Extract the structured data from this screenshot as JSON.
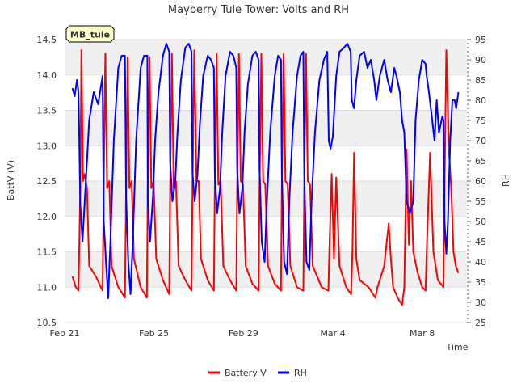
{
  "chart_data": {
    "type": "line",
    "title": "Mayberry Tule Tower: Volts and RH",
    "site_label": "MB_tule",
    "xlabel": "Time",
    "ylabel_left": "BattV (V)",
    "ylabel_right": "RH",
    "x_ticks": [
      "Feb 21",
      "Feb 25",
      "Feb 29",
      "Mar 4",
      "Mar 8"
    ],
    "x_tick_days": [
      0,
      4,
      8,
      12,
      16
    ],
    "xlim_days": [
      0,
      18
    ],
    "ylim_left": [
      10.5,
      14.5
    ],
    "yticks_left": [
      "10.5",
      "11.0",
      "11.5",
      "12.0",
      "12.5",
      "13.0",
      "13.5",
      "14.0",
      "14.5"
    ],
    "ylim_right": [
      25,
      95
    ],
    "yticks_right": [
      "25",
      "30",
      "35",
      "40",
      "45",
      "50",
      "55",
      "60",
      "65",
      "70",
      "75",
      "80",
      "85",
      "90",
      "95"
    ],
    "grid": true,
    "legend_position": "bottom-center",
    "series": [
      {
        "name": "Battery V",
        "axis": "left",
        "color": "#ff0000",
        "points": [
          [
            0.35,
            11.15
          ],
          [
            0.5,
            11.0
          ],
          [
            0.62,
            10.95
          ],
          [
            0.7,
            12.4
          ],
          [
            0.75,
            14.35
          ],
          [
            0.82,
            12.5
          ],
          [
            0.9,
            12.6
          ],
          [
            1.0,
            12.4
          ],
          [
            1.1,
            11.3
          ],
          [
            1.4,
            11.15
          ],
          [
            1.7,
            10.95
          ],
          [
            1.75,
            12.4
          ],
          [
            1.82,
            14.3
          ],
          [
            1.9,
            12.4
          ],
          [
            2.0,
            12.5
          ],
          [
            2.1,
            11.3
          ],
          [
            2.4,
            11.0
          ],
          [
            2.7,
            10.85
          ],
          [
            2.75,
            12.4
          ],
          [
            2.82,
            14.25
          ],
          [
            2.9,
            12.4
          ],
          [
            3.0,
            12.5
          ],
          [
            3.1,
            11.4
          ],
          [
            3.4,
            11.0
          ],
          [
            3.68,
            10.85
          ],
          [
            3.72,
            12.4
          ],
          [
            3.8,
            14.25
          ],
          [
            3.88,
            12.4
          ],
          [
            3.98,
            12.5
          ],
          [
            4.1,
            11.4
          ],
          [
            4.4,
            11.1
          ],
          [
            4.68,
            10.9
          ],
          [
            4.72,
            12.4
          ],
          [
            4.8,
            14.3
          ],
          [
            4.88,
            12.4
          ],
          [
            4.98,
            12.5
          ],
          [
            5.1,
            11.3
          ],
          [
            5.4,
            11.1
          ],
          [
            5.68,
            10.95
          ],
          [
            5.72,
            12.4
          ],
          [
            5.8,
            14.35
          ],
          [
            5.9,
            12.5
          ],
          [
            6.0,
            12.5
          ],
          [
            6.1,
            11.4
          ],
          [
            6.4,
            11.1
          ],
          [
            6.68,
            10.95
          ],
          [
            6.72,
            12.4
          ],
          [
            6.8,
            14.3
          ],
          [
            6.88,
            12.45
          ],
          [
            6.98,
            12.5
          ],
          [
            7.1,
            11.3
          ],
          [
            7.4,
            11.1
          ],
          [
            7.68,
            10.95
          ],
          [
            7.72,
            12.4
          ],
          [
            7.8,
            14.3
          ],
          [
            7.88,
            12.5
          ],
          [
            7.98,
            12.45
          ],
          [
            8.1,
            11.3
          ],
          [
            8.4,
            11.05
          ],
          [
            8.68,
            10.95
          ],
          [
            8.72,
            12.4
          ],
          [
            8.8,
            14.3
          ],
          [
            8.88,
            12.5
          ],
          [
            8.98,
            12.45
          ],
          [
            9.1,
            11.3
          ],
          [
            9.4,
            11.05
          ],
          [
            9.68,
            10.95
          ],
          [
            9.72,
            12.4
          ],
          [
            9.8,
            14.3
          ],
          [
            9.88,
            12.5
          ],
          [
            9.98,
            12.45
          ],
          [
            10.1,
            11.3
          ],
          [
            10.4,
            11.0
          ],
          [
            10.68,
            10.95
          ],
          [
            10.72,
            12.4
          ],
          [
            10.8,
            14.3
          ],
          [
            10.88,
            12.5
          ],
          [
            10.98,
            12.45
          ],
          [
            11.1,
            11.3
          ],
          [
            11.5,
            11.0
          ],
          [
            11.8,
            10.95
          ],
          [
            11.85,
            11.6
          ],
          [
            11.95,
            12.6
          ],
          [
            12.05,
            11.4
          ],
          [
            12.15,
            12.55
          ],
          [
            12.3,
            11.3
          ],
          [
            12.6,
            11.0
          ],
          [
            12.82,
            10.9
          ],
          [
            12.88,
            11.5
          ],
          [
            12.95,
            12.9
          ],
          [
            13.05,
            11.4
          ],
          [
            13.2,
            11.1
          ],
          [
            13.6,
            11.0
          ],
          [
            13.9,
            10.85
          ],
          [
            14.0,
            11.0
          ],
          [
            14.3,
            11.3
          ],
          [
            14.5,
            11.9
          ],
          [
            14.6,
            11.4
          ],
          [
            14.7,
            11.0
          ],
          [
            14.9,
            10.85
          ],
          [
            15.1,
            10.75
          ],
          [
            15.2,
            11.0
          ],
          [
            15.3,
            12.95
          ],
          [
            15.4,
            11.6
          ],
          [
            15.5,
            12.5
          ],
          [
            15.6,
            11.5
          ],
          [
            15.8,
            11.2
          ],
          [
            16.0,
            11.0
          ],
          [
            16.15,
            10.95
          ],
          [
            16.2,
            11.5
          ],
          [
            16.35,
            12.9
          ],
          [
            16.5,
            11.5
          ],
          [
            16.7,
            11.1
          ],
          [
            16.95,
            11.0
          ],
          [
            17.0,
            12.4
          ],
          [
            17.08,
            14.35
          ],
          [
            17.2,
            12.9
          ],
          [
            17.3,
            12.4
          ],
          [
            17.4,
            11.5
          ],
          [
            17.5,
            11.3
          ],
          [
            17.62,
            11.2
          ]
        ]
      },
      {
        "name": "RH",
        "axis": "right",
        "color": "#0000ff",
        "points": [
          [
            0.35,
            83
          ],
          [
            0.45,
            81
          ],
          [
            0.55,
            85
          ],
          [
            0.62,
            82
          ],
          [
            0.7,
            54
          ],
          [
            0.8,
            45
          ],
          [
            0.9,
            55
          ],
          [
            1.0,
            65
          ],
          [
            1.1,
            75
          ],
          [
            1.3,
            82
          ],
          [
            1.5,
            79
          ],
          [
            1.7,
            86
          ],
          [
            1.75,
            50
          ],
          [
            1.85,
            40
          ],
          [
            1.95,
            31
          ],
          [
            2.05,
            45
          ],
          [
            2.2,
            70
          ],
          [
            2.4,
            88
          ],
          [
            2.55,
            91
          ],
          [
            2.7,
            91
          ],
          [
            2.75,
            56
          ],
          [
            2.85,
            40
          ],
          [
            2.95,
            32
          ],
          [
            3.05,
            45
          ],
          [
            3.2,
            70
          ],
          [
            3.4,
            88
          ],
          [
            3.55,
            91
          ],
          [
            3.7,
            91
          ],
          [
            3.72,
            55
          ],
          [
            3.82,
            45
          ],
          [
            3.95,
            56
          ],
          [
            4.05,
            70
          ],
          [
            4.2,
            82
          ],
          [
            4.4,
            91
          ],
          [
            4.55,
            94
          ],
          [
            4.68,
            92
          ],
          [
            4.72,
            65
          ],
          [
            4.82,
            55
          ],
          [
            4.95,
            60
          ],
          [
            5.05,
            72
          ],
          [
            5.2,
            85
          ],
          [
            5.4,
            93
          ],
          [
            5.55,
            94
          ],
          [
            5.68,
            92
          ],
          [
            5.72,
            62
          ],
          [
            5.82,
            55
          ],
          [
            5.95,
            62
          ],
          [
            6.05,
            74
          ],
          [
            6.2,
            86
          ],
          [
            6.4,
            91
          ],
          [
            6.55,
            90
          ],
          [
            6.68,
            88
          ],
          [
            6.72,
            62
          ],
          [
            6.82,
            52
          ],
          [
            6.95,
            58
          ],
          [
            7.05,
            72
          ],
          [
            7.2,
            86
          ],
          [
            7.4,
            92
          ],
          [
            7.55,
            91
          ],
          [
            7.68,
            88
          ],
          [
            7.72,
            63
          ],
          [
            7.82,
            52
          ],
          [
            7.95,
            58
          ],
          [
            8.05,
            72
          ],
          [
            8.2,
            84
          ],
          [
            8.4,
            91
          ],
          [
            8.55,
            92
          ],
          [
            8.68,
            90
          ],
          [
            8.72,
            63
          ],
          [
            8.82,
            45
          ],
          [
            8.95,
            40
          ],
          [
            9.05,
            55
          ],
          [
            9.2,
            72
          ],
          [
            9.4,
            86
          ],
          [
            9.55,
            91
          ],
          [
            9.68,
            90
          ],
          [
            9.72,
            62
          ],
          [
            9.82,
            40
          ],
          [
            9.95,
            37
          ],
          [
            10.05,
            55
          ],
          [
            10.2,
            72
          ],
          [
            10.4,
            86
          ],
          [
            10.55,
            91
          ],
          [
            10.68,
            92
          ],
          [
            10.72,
            62
          ],
          [
            10.82,
            40
          ],
          [
            10.95,
            38
          ],
          [
            11.05,
            55
          ],
          [
            11.2,
            72
          ],
          [
            11.4,
            85
          ],
          [
            11.6,
            90
          ],
          [
            11.75,
            92
          ],
          [
            11.82,
            70
          ],
          [
            11.9,
            68
          ],
          [
            12.0,
            71
          ],
          [
            12.15,
            86
          ],
          [
            12.3,
            92
          ],
          [
            12.5,
            93
          ],
          [
            12.65,
            94
          ],
          [
            12.8,
            92
          ],
          [
            12.85,
            80
          ],
          [
            12.95,
            78
          ],
          [
            13.05,
            85
          ],
          [
            13.2,
            91
          ],
          [
            13.4,
            92
          ],
          [
            13.55,
            88
          ],
          [
            13.7,
            90
          ],
          [
            13.85,
            85
          ],
          [
            13.95,
            80
          ],
          [
            14.1,
            86
          ],
          [
            14.3,
            90
          ],
          [
            14.45,
            85
          ],
          [
            14.6,
            82
          ],
          [
            14.75,
            88
          ],
          [
            14.85,
            86
          ],
          [
            15.0,
            82
          ],
          [
            15.1,
            75
          ],
          [
            15.2,
            72
          ],
          [
            15.3,
            55
          ],
          [
            15.45,
            52
          ],
          [
            15.6,
            55
          ],
          [
            15.7,
            75
          ],
          [
            15.85,
            85
          ],
          [
            16.0,
            90
          ],
          [
            16.15,
            89
          ],
          [
            16.2,
            86
          ],
          [
            16.3,
            82
          ],
          [
            16.45,
            75
          ],
          [
            16.55,
            70
          ],
          [
            16.65,
            80
          ],
          [
            16.75,
            72
          ],
          [
            16.9,
            76
          ],
          [
            16.95,
            75
          ],
          [
            17.0,
            50
          ],
          [
            17.08,
            42
          ],
          [
            17.15,
            50
          ],
          [
            17.25,
            70
          ],
          [
            17.35,
            80
          ],
          [
            17.45,
            80
          ],
          [
            17.52,
            78
          ],
          [
            17.62,
            82
          ]
        ]
      }
    ]
  }
}
